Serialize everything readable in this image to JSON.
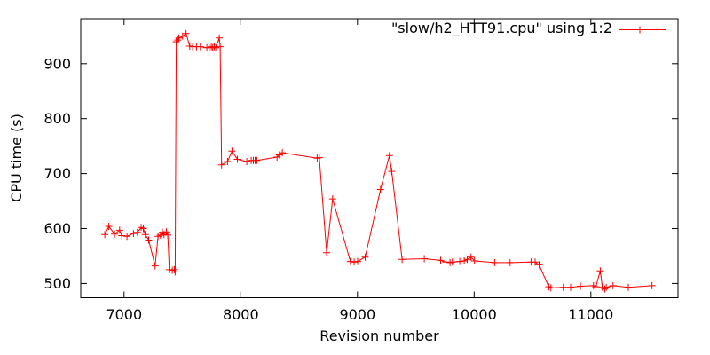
{
  "chart_data": {
    "type": "line",
    "style": "linespoints",
    "title": "",
    "xlabel": "Revision number",
    "ylabel": "CPU time (s)",
    "xlim": [
      6629,
      11747
    ],
    "ylim": [
      474,
      982
    ],
    "xticks": [
      7000,
      8000,
      9000,
      10000,
      11000
    ],
    "yticks": [
      500,
      600,
      700,
      800,
      900
    ],
    "grid": false,
    "legend": {
      "position": "top-right-inside",
      "entries": [
        {
          "label": "\"slow/h2_HTT91.cpu\" using 1:2",
          "color": "#ff0000",
          "marker": "plus"
        }
      ]
    },
    "colors": {
      "line": "#ff0000",
      "axis": "#000000",
      "text": "#000000",
      "background": "#ffffff"
    },
    "series": [
      {
        "name": "\"slow/h2_HTT91.cpu\" using 1:2",
        "color": "#ff0000",
        "marker": "plus",
        "points": [
          [
            6835,
            589
          ],
          [
            6869,
            604
          ],
          [
            6919,
            590
          ],
          [
            6962,
            597
          ],
          [
            6980,
            587
          ],
          [
            7025,
            586
          ],
          [
            7081,
            591
          ],
          [
            7114,
            593
          ],
          [
            7147,
            602
          ],
          [
            7165,
            600
          ],
          [
            7182,
            589
          ],
          [
            7211,
            579
          ],
          [
            7266,
            532
          ],
          [
            7291,
            586
          ],
          [
            7312,
            588
          ],
          [
            7329,
            593
          ],
          [
            7342,
            589
          ],
          [
            7363,
            594
          ],
          [
            7375,
            588
          ],
          [
            7388,
            525
          ],
          [
            7413,
            524
          ],
          [
            7431,
            525
          ],
          [
            7438,
            521
          ],
          [
            7447,
            940
          ],
          [
            7460,
            943
          ],
          [
            7470,
            947
          ],
          [
            7502,
            950
          ],
          [
            7532,
            955
          ],
          [
            7563,
            932
          ],
          [
            7588,
            931
          ],
          [
            7621,
            931
          ],
          [
            7654,
            931
          ],
          [
            7710,
            929
          ],
          [
            7730,
            929
          ],
          [
            7748,
            931
          ],
          [
            7760,
            929
          ],
          [
            7773,
            931
          ],
          [
            7786,
            929
          ],
          [
            7816,
            947
          ],
          [
            7824,
            931
          ],
          [
            7836,
            716
          ],
          [
            7887,
            722
          ],
          [
            7925,
            741
          ],
          [
            7971,
            726
          ],
          [
            8052,
            722
          ],
          [
            8090,
            724
          ],
          [
            8108,
            724
          ],
          [
            8123,
            724
          ],
          [
            8138,
            724
          ],
          [
            8311,
            730
          ],
          [
            8331,
            734
          ],
          [
            8356,
            738
          ],
          [
            8655,
            728
          ],
          [
            8673,
            729
          ],
          [
            8736,
            556
          ],
          [
            8787,
            654
          ],
          [
            8939,
            540
          ],
          [
            8972,
            539
          ],
          [
            9002,
            540
          ],
          [
            9066,
            548
          ],
          [
            9198,
            671
          ],
          [
            9274,
            733
          ],
          [
            9294,
            704
          ],
          [
            9383,
            544
          ],
          [
            9573,
            545
          ],
          [
            9713,
            542
          ],
          [
            9758,
            539
          ],
          [
            9793,
            538
          ],
          [
            9814,
            539
          ],
          [
            9877,
            540
          ],
          [
            9915,
            541
          ],
          [
            9941,
            544
          ],
          [
            9973,
            548
          ],
          [
            10003,
            541
          ],
          [
            10176,
            538
          ],
          [
            10308,
            538
          ],
          [
            10488,
            539
          ],
          [
            10523,
            539
          ],
          [
            10557,
            534
          ],
          [
            10640,
            494
          ],
          [
            10658,
            492
          ],
          [
            10764,
            493
          ],
          [
            10827,
            493
          ],
          [
            10911,
            495
          ],
          [
            11023,
            496
          ],
          [
            11043,
            494
          ],
          [
            11081,
            523
          ],
          [
            11099,
            493
          ],
          [
            11119,
            490
          ],
          [
            11132,
            493
          ],
          [
            11190,
            496
          ],
          [
            11321,
            493
          ],
          [
            11524,
            496
          ]
        ]
      }
    ]
  }
}
